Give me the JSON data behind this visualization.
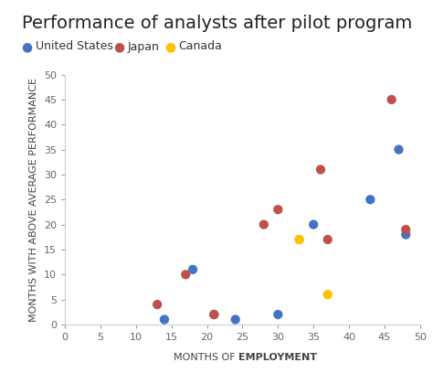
{
  "title": "Performance of analysts after pilot program",
  "ylabel": "MONTHS WITH ABOVE AVERAGE PERFORMANCE",
  "xlabel_normal": "MONTHS OF ",
  "xlabel_bold": "EMPLOYMENT",
  "xlim": [
    0,
    50
  ],
  "ylim": [
    0,
    50
  ],
  "xticks": [
    0,
    5,
    10,
    15,
    20,
    25,
    30,
    35,
    40,
    45,
    50
  ],
  "yticks": [
    0,
    5,
    10,
    15,
    20,
    25,
    30,
    35,
    40,
    45,
    50
  ],
  "series": [
    {
      "label": "United States",
      "color": "#4472C4",
      "x": [
        14,
        18,
        24,
        30,
        35,
        43,
        47,
        48
      ],
      "y": [
        1,
        11,
        1,
        2,
        20,
        25,
        35,
        18
      ]
    },
    {
      "label": "Japan",
      "color": "#C0504D",
      "x": [
        13,
        17,
        21,
        21,
        28,
        30,
        36,
        37,
        46,
        48
      ],
      "y": [
        4,
        10,
        2,
        2,
        20,
        23,
        31,
        17,
        45,
        19
      ]
    },
    {
      "label": "Canada",
      "color": "#FFC000",
      "x": [
        33,
        33,
        37
      ],
      "y": [
        17,
        17,
        6
      ]
    }
  ],
  "background_color": "#ffffff",
  "plot_bg_color": "#ffffff",
  "title_fontsize": 14,
  "axis_label_fontsize": 8,
  "legend_fontsize": 9,
  "tick_fontsize": 8,
  "marker_size": 55
}
